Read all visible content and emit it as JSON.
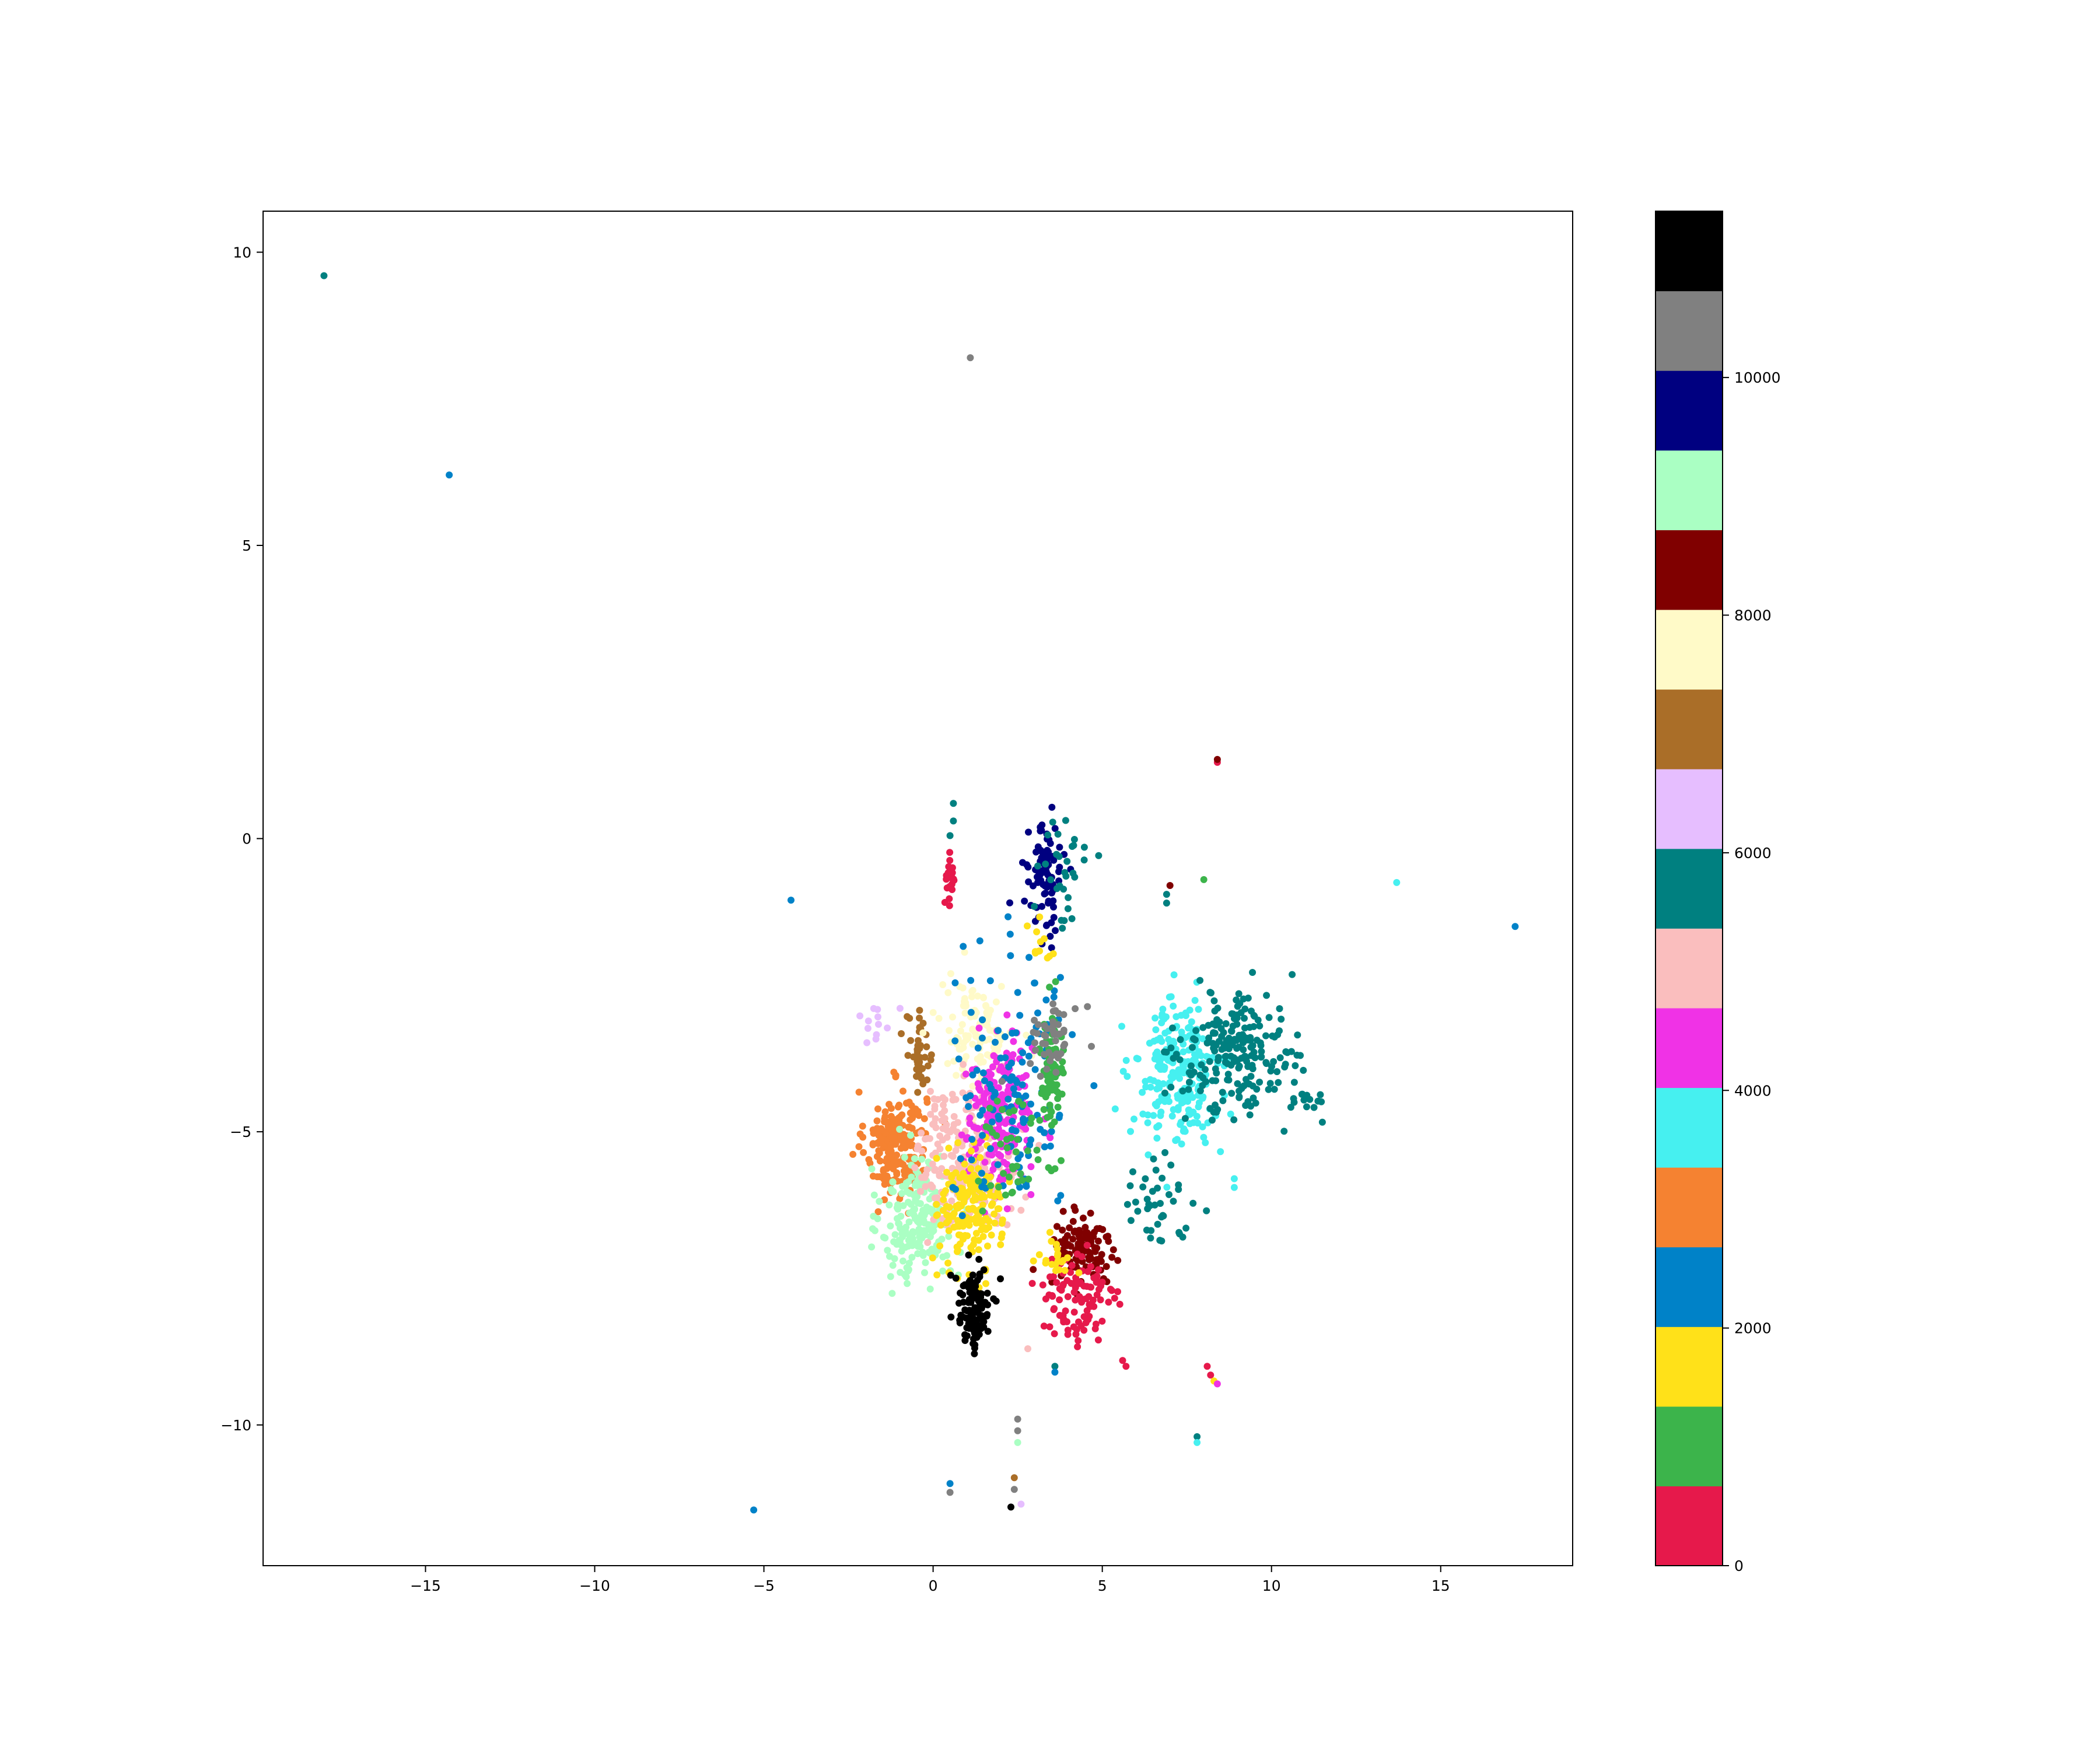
{
  "chart_data": {
    "type": "scatter",
    "title": "",
    "xlabel": "",
    "ylabel": "",
    "xlim": [
      -19.8,
      18.9
    ],
    "ylim": [
      -12.4,
      10.7
    ],
    "x_ticks": [
      -15,
      -10,
      -5,
      0,
      5,
      10,
      15
    ],
    "x_tick_labels": [
      "−15",
      "−10",
      "−5",
      "0",
      "5",
      "10",
      "15"
    ],
    "y_ticks": [
      10,
      5,
      0,
      -5,
      -10
    ],
    "y_tick_labels": [
      "10",
      "5",
      "0",
      "−5",
      "−10"
    ],
    "grid": false,
    "colorbar": {
      "range": [
        0,
        11400
      ],
      "ticks": [
        0,
        2000,
        4000,
        6000,
        8000,
        10000
      ],
      "tick_labels": [
        "0",
        "2000",
        "4000",
        "6000",
        "8000",
        "10000"
      ],
      "colors": [
        "#e6194b",
        "#3cb44b",
        "#ffe119",
        "#0082c8",
        "#f58231",
        "#46f0f0",
        "#f032e6",
        "#fabebe",
        "#008080",
        "#e6beff",
        "#aa6e28",
        "#fffac8",
        "#800000",
        "#aaffc3",
        "#000080",
        "#808080",
        "#000000"
      ]
    },
    "clusters": [
      {
        "color": "#f58231",
        "cx": -1.1,
        "cy": -5.2,
        "sx": 0.45,
        "sy": 0.45,
        "n": 220
      },
      {
        "color": "#aaffc3",
        "cx": -0.4,
        "cy": -6.5,
        "sx": 0.55,
        "sy": 0.55,
        "n": 200
      },
      {
        "color": "#aa6e28",
        "cx": -0.4,
        "cy": -3.7,
        "sx": 0.2,
        "sy": 0.35,
        "n": 40
      },
      {
        "color": "#fffac8",
        "cx": 1.3,
        "cy": -3.3,
        "sx": 0.55,
        "sy": 0.45,
        "n": 110
      },
      {
        "color": "#e6beff",
        "cx": -1.7,
        "cy": -3.1,
        "sx": 0.25,
        "sy": 0.2,
        "n": 12
      },
      {
        "color": "#fabebe",
        "cx": 1.0,
        "cy": -5.4,
        "sx": 0.75,
        "sy": 0.6,
        "n": 230
      },
      {
        "color": "#f032e6",
        "cx": 2.0,
        "cy": -4.7,
        "sx": 0.5,
        "sy": 0.6,
        "n": 200
      },
      {
        "color": "#ffe119",
        "cx": 1.1,
        "cy": -6.3,
        "sx": 0.45,
        "sy": 0.5,
        "n": 180
      },
      {
        "color": "#0082c8",
        "cx": 2.4,
        "cy": -4.2,
        "sx": 0.9,
        "sy": 1.1,
        "n": 130
      },
      {
        "color": "#3cb44b",
        "cx": 3.5,
        "cy": -4.1,
        "sx": 0.18,
        "sy": 0.5,
        "n": 80
      },
      {
        "color": "#3cb44b",
        "cx": 2.3,
        "cy": -5.3,
        "sx": 0.6,
        "sy": 0.5,
        "n": 40
      },
      {
        "color": "#808080",
        "cx": 3.6,
        "cy": -3.3,
        "sx": 0.4,
        "sy": 0.3,
        "n": 45
      },
      {
        "color": "#000080",
        "cx": 3.3,
        "cy": -0.7,
        "sx": 0.25,
        "sy": 0.45,
        "n": 90
      },
      {
        "color": "#008080",
        "cx": 3.9,
        "cy": -0.5,
        "sx": 0.4,
        "sy": 0.5,
        "n": 30
      },
      {
        "color": "#000000",
        "cx": 1.2,
        "cy": -8.0,
        "sx": 0.25,
        "sy": 0.35,
        "n": 110
      },
      {
        "color": "#800000",
        "cx": 4.4,
        "cy": -7.0,
        "sx": 0.45,
        "sy": 0.35,
        "n": 110
      },
      {
        "color": "#e6194b",
        "cx": 4.3,
        "cy": -7.9,
        "sx": 0.6,
        "sy": 0.45,
        "n": 100
      },
      {
        "color": "#e6194b",
        "cx": 0.5,
        "cy": -0.7,
        "sx": 0.08,
        "sy": 0.22,
        "n": 20
      },
      {
        "color": "#46f0f0",
        "cx": 7.2,
        "cy": -4.0,
        "sx": 0.6,
        "sy": 0.6,
        "n": 230
      },
      {
        "color": "#008080",
        "cx": 9.0,
        "cy": -3.7,
        "sx": 0.85,
        "sy": 0.5,
        "n": 210
      },
      {
        "color": "#008080",
        "cx": 6.5,
        "cy": -6.2,
        "sx": 0.5,
        "sy": 0.35,
        "n": 40
      },
      {
        "color": "#008080",
        "cx": 10.9,
        "cy": -4.5,
        "sx": 0.4,
        "sy": 0.2,
        "n": 16
      },
      {
        "color": "#ffe119",
        "cx": 3.6,
        "cy": -7.1,
        "sx": 0.3,
        "sy": 0.2,
        "n": 20
      },
      {
        "color": "#ffe119",
        "cx": 3.2,
        "cy": -1.7,
        "sx": 0.2,
        "sy": 0.3,
        "n": 12
      }
    ],
    "points": [
      {
        "x": -18.0,
        "y": 9.6,
        "color": "#008080"
      },
      {
        "x": -14.3,
        "y": 6.2,
        "color": "#0082c8"
      },
      {
        "x": 1.1,
        "y": 8.2,
        "color": "#808080"
      },
      {
        "x": -4.2,
        "y": -1.05,
        "color": "#0082c8"
      },
      {
        "x": 8.4,
        "y": 1.3,
        "color": "#e6194b"
      },
      {
        "x": 8.4,
        "y": 1.35,
        "color": "#800000"
      },
      {
        "x": 8.0,
        "y": -0.7,
        "color": "#3cb44b"
      },
      {
        "x": 13.7,
        "y": -0.75,
        "color": "#46f0f0"
      },
      {
        "x": 17.2,
        "y": -1.5,
        "color": "#0082c8"
      },
      {
        "x": 0.6,
        "y": 0.6,
        "color": "#008080"
      },
      {
        "x": 0.6,
        "y": 0.3,
        "color": "#008080"
      },
      {
        "x": 0.5,
        "y": 0.05,
        "color": "#008080"
      },
      {
        "x": 6.9,
        "y": -0.95,
        "color": "#008080"
      },
      {
        "x": 6.9,
        "y": -1.1,
        "color": "#008080"
      },
      {
        "x": 7.0,
        "y": -0.8,
        "color": "#800000"
      },
      {
        "x": 8.9,
        "y": -5.8,
        "color": "#46f0f0"
      },
      {
        "x": 8.9,
        "y": -5.95,
        "color": "#46f0f0"
      },
      {
        "x": 2.8,
        "y": -8.7,
        "color": "#fabebe"
      },
      {
        "x": 3.6,
        "y": -9.0,
        "color": "#008080"
      },
      {
        "x": 3.6,
        "y": -9.1,
        "color": "#0082c8"
      },
      {
        "x": 5.6,
        "y": -8.9,
        "color": "#e6194b"
      },
      {
        "x": 5.7,
        "y": -9.0,
        "color": "#e6194b"
      },
      {
        "x": 8.1,
        "y": -9.0,
        "color": "#e6194b"
      },
      {
        "x": 8.2,
        "y": -9.15,
        "color": "#e6194b"
      },
      {
        "x": 8.3,
        "y": -9.25,
        "color": "#ffe119"
      },
      {
        "x": 8.4,
        "y": -9.3,
        "color": "#f032e6"
      },
      {
        "x": 7.8,
        "y": -10.2,
        "color": "#008080"
      },
      {
        "x": 7.8,
        "y": -10.3,
        "color": "#46f0f0"
      },
      {
        "x": 2.5,
        "y": -9.9,
        "color": "#808080"
      },
      {
        "x": 2.5,
        "y": -10.1,
        "color": "#808080"
      },
      {
        "x": 2.5,
        "y": -10.3,
        "color": "#aaffc3"
      },
      {
        "x": 0.5,
        "y": -11.0,
        "color": "#0082c8"
      },
      {
        "x": 0.5,
        "y": -11.15,
        "color": "#808080"
      },
      {
        "x": 2.4,
        "y": -10.9,
        "color": "#aa6e28"
      },
      {
        "x": 2.4,
        "y": -11.1,
        "color": "#808080"
      },
      {
        "x": 2.3,
        "y": -11.4,
        "color": "#000000"
      },
      {
        "x": 2.6,
        "y": -11.35,
        "color": "#e6beff"
      },
      {
        "x": -5.3,
        "y": -11.45,
        "color": "#0082c8"
      }
    ]
  }
}
